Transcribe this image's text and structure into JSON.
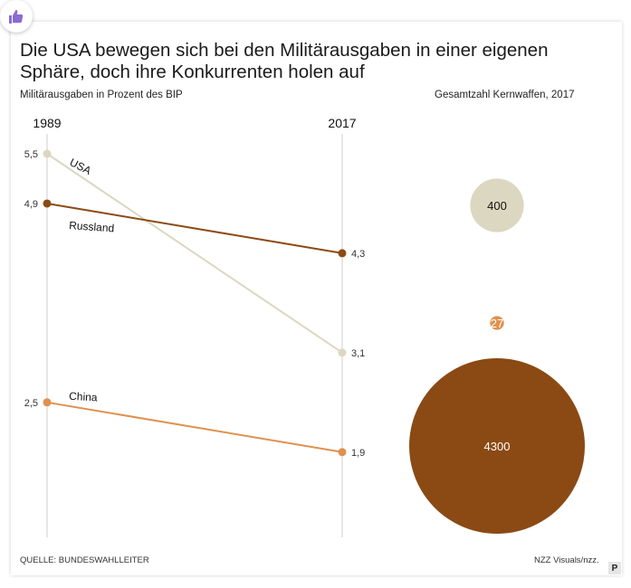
{
  "header": {
    "title": "Die USA bewegen sich bei den Militärausgaben in einer eigenen Sphäre, doch ihre Konkurrenten holen auf"
  },
  "chart_data": [
    {
      "type": "line",
      "subtitle": "Militärausgaben in Prozent des BIP",
      "x": [
        "1989",
        "2017"
      ],
      "series": [
        {
          "name": "USA",
          "values": [
            5.5,
            3.1
          ],
          "labels": [
            "5,5",
            "3,1"
          ],
          "color": "#dcd7c0"
        },
        {
          "name": "Russland",
          "values": [
            4.9,
            4.3
          ],
          "labels": [
            "4,9",
            "4,3"
          ],
          "color": "#8b4a14"
        },
        {
          "name": "China",
          "values": [
            2.5,
            1.9
          ],
          "labels": [
            "2,5",
            "1,9"
          ],
          "color": "#e0914f"
        }
      ],
      "grid": false
    },
    {
      "type": "bubble",
      "subtitle": "Gesamtzahl Kernwaffen, 2017",
      "values": [
        {
          "value": 400,
          "label": "400",
          "color": "#dcd7c0"
        },
        {
          "value": 27,
          "label": "27",
          "color": "#e0914f"
        },
        {
          "value": 4300,
          "label": "4300",
          "color": "#8b4a14"
        }
      ]
    }
  ],
  "footer": {
    "source": "QUELLE: BUNDESWAHLLEITER",
    "credit": "NZZ Visuals/nzz."
  },
  "badge": "P",
  "icons": {
    "top_left": "thumbs-up-icon"
  }
}
